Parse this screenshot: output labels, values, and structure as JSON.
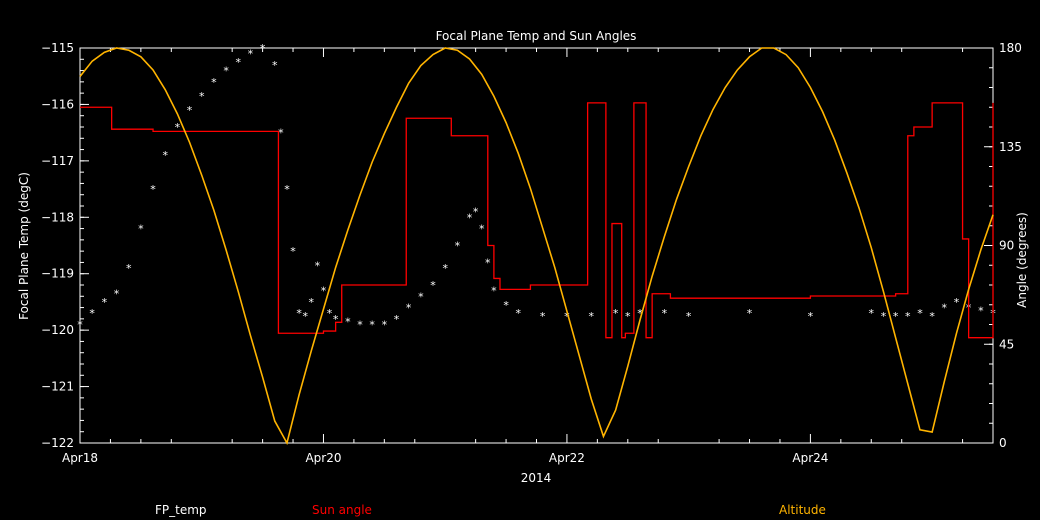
{
  "chart_data": {
    "type": "line",
    "title": "Focal Plane Temp and Sun Angles",
    "xlabel": "2014",
    "ylabel": "Focal Plane Temp (degC)",
    "y2label": "Angle (degrees)",
    "xlim": [
      0,
      7.5
    ],
    "ylim": [
      -122,
      -115
    ],
    "y2lim": [
      0,
      180
    ],
    "grid": false,
    "x_ticks": [
      {
        "x": 0,
        "label": "Apr18"
      },
      {
        "x": 2,
        "label": "Apr20"
      },
      {
        "x": 4,
        "label": "Apr22"
      },
      {
        "x": 6,
        "label": "Apr24"
      }
    ],
    "y_ticks": [
      {
        "y": -115,
        "label": "−115"
      },
      {
        "y": -116,
        "label": "−116"
      },
      {
        "y": -117,
        "label": "−117"
      },
      {
        "y": -118,
        "label": "−118"
      },
      {
        "y": -119,
        "label": "−119"
      },
      {
        "y": -120,
        "label": "−120"
      },
      {
        "y": -121,
        "label": "−121"
      },
      {
        "y": -122,
        "label": "−122"
      }
    ],
    "y2_ticks": [
      {
        "y": 180,
        "label": "180"
      },
      {
        "y": 135,
        "label": "135"
      },
      {
        "y": 90,
        "label": "90"
      },
      {
        "y": 45,
        "label": "45"
      },
      {
        "y": 0,
        "label": "0"
      }
    ],
    "legend": [
      {
        "name": "FP_temp",
        "color": "#ffffff"
      },
      {
        "name": "Sun angle",
        "color": "#ff0000"
      },
      {
        "name": "Altitude",
        "color": "#ffb400"
      }
    ],
    "series": [
      {
        "name": "FP_temp",
        "axis": "left",
        "style": "asterisk",
        "color": "#ffffff",
        "x": [
          0.0,
          0.1,
          0.2,
          0.3,
          0.4,
          0.5,
          0.6,
          0.7,
          0.8,
          0.9,
          1.0,
          1.1,
          1.2,
          1.3,
          1.4,
          1.5,
          1.6,
          1.65,
          1.7,
          1.75,
          1.8,
          1.85,
          1.9,
          1.95,
          2.0,
          2.05,
          2.1,
          2.2,
          2.3,
          2.4,
          2.5,
          2.6,
          2.7,
          2.8,
          2.9,
          3.0,
          3.1,
          3.2,
          3.25,
          3.3,
          3.35,
          3.4,
          3.5,
          3.6,
          3.8,
          4.0,
          4.2,
          4.4,
          4.5,
          4.6,
          4.8,
          5.0,
          5.5,
          6.0,
          6.5,
          6.6,
          6.7,
          6.8,
          6.9,
          7.0,
          7.1,
          7.2,
          7.3,
          7.4,
          7.5
        ],
        "y": [
          -119.9,
          -119.7,
          -119.5,
          -119.35,
          -118.9,
          -118.2,
          -117.5,
          -116.9,
          -116.4,
          -116.1,
          -115.85,
          -115.6,
          -115.4,
          -115.25,
          -115.1,
          -115.0,
          -115.3,
          -116.5,
          -117.5,
          -118.6,
          -119.7,
          -119.75,
          -119.5,
          -118.85,
          -119.3,
          -119.7,
          -119.8,
          -119.85,
          -119.9,
          -119.9,
          -119.9,
          -119.8,
          -119.6,
          -119.4,
          -119.2,
          -118.9,
          -118.5,
          -118.0,
          -117.9,
          -118.2,
          -118.8,
          -119.3,
          -119.55,
          -119.7,
          -119.75,
          -119.75,
          -119.75,
          -119.7,
          -119.75,
          -119.7,
          -119.7,
          -119.75,
          -119.7,
          -119.75,
          -119.7,
          -119.75,
          -119.75,
          -119.75,
          -119.7,
          -119.75,
          -119.6,
          -119.5,
          -119.6,
          -119.65,
          -119.7
        ]
      },
      {
        "name": "Sun angle",
        "axis": "right",
        "style": "step",
        "color": "#ff0000",
        "x": [
          0.0,
          0.25,
          0.26,
          0.55,
          0.6,
          1.2,
          1.5,
          1.6,
          1.63,
          1.95,
          2.0,
          2.1,
          2.15,
          2.65,
          2.68,
          3.0,
          3.05,
          3.3,
          3.35,
          3.4,
          3.45,
          3.65,
          3.7,
          4.15,
          4.17,
          4.3,
          4.32,
          4.35,
          4.37,
          4.45,
          4.48,
          4.52,
          4.55,
          4.65,
          4.7,
          4.8,
          4.85,
          5.5,
          6.0,
          6.5,
          6.7,
          6.73,
          6.8,
          6.85,
          6.98,
          7.0,
          7.08,
          7.12,
          7.2,
          7.25,
          7.3,
          7.45,
          7.5
        ],
        "y": [
          153,
          153,
          143,
          143,
          142,
          142,
          142,
          142,
          50,
          50,
          51,
          55,
          72,
          72,
          148,
          148,
          140,
          140,
          90,
          75,
          70,
          70,
          72,
          72,
          155,
          155,
          48,
          48,
          100,
          48,
          50,
          50,
          155,
          48,
          68,
          68,
          66,
          66,
          67,
          67,
          68,
          68,
          140,
          144,
          144,
          155,
          155,
          155,
          155,
          93,
          48,
          48,
          155
        ]
      },
      {
        "name": "Altitude",
        "axis": "right",
        "style": "line",
        "color": "#ffb400",
        "x": [
          0.0,
          0.1,
          0.2,
          0.3,
          0.4,
          0.5,
          0.6,
          0.7,
          0.8,
          0.9,
          1.0,
          1.1,
          1.2,
          1.3,
          1.4,
          1.5,
          1.6,
          1.7,
          1.8,
          1.9,
          2.0,
          2.1,
          2.2,
          2.3,
          2.4,
          2.5,
          2.6,
          2.7,
          2.8,
          2.9,
          3.0,
          3.1,
          3.2,
          3.3,
          3.4,
          3.5,
          3.6,
          3.7,
          3.8,
          3.9,
          4.0,
          4.1,
          4.2,
          4.3,
          4.4,
          4.5,
          4.6,
          4.7,
          4.8,
          4.9,
          5.0,
          5.1,
          5.2,
          5.3,
          5.4,
          5.5,
          5.6,
          5.7,
          5.8,
          5.9,
          6.0,
          6.1,
          6.2,
          6.3,
          6.4,
          6.5,
          6.6,
          6.7,
          6.8,
          6.9,
          7.0,
          7.1,
          7.2,
          7.3,
          7.4,
          7.5
        ],
        "y": [
          167,
          174,
          178,
          180,
          179,
          176,
          170,
          161,
          150,
          137,
          122,
          106,
          88,
          69,
          49,
          30,
          10,
          0,
          22,
          42,
          61,
          80,
          97,
          113,
          128,
          141,
          153,
          164,
          172,
          177,
          180,
          179,
          175,
          168,
          158,
          146,
          132,
          116,
          98,
          80,
          60,
          40,
          20,
          3,
          15,
          35,
          56,
          76,
          94,
          111,
          126,
          140,
          152,
          162,
          170,
          176,
          180,
          180,
          177,
          171,
          162,
          151,
          138,
          123,
          107,
          89,
          69,
          48,
          27,
          6,
          5,
          28,
          50,
          70,
          88,
          104
        ]
      }
    ]
  }
}
